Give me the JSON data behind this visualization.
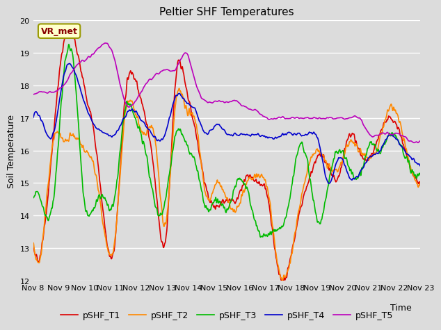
{
  "title": "Peltier SHF Temperatures",
  "xlabel": "Time",
  "ylabel": "Soil Temperature",
  "ylim": [
    12.0,
    20.0
  ],
  "yticks": [
    12.0,
    13.0,
    14.0,
    15.0,
    16.0,
    17.0,
    18.0,
    19.0,
    20.0
  ],
  "x_tick_labels": [
    "Nov 8",
    "Nov 9",
    "Nov 10",
    "Nov 11",
    "Nov 12",
    "Nov 13",
    "Nov 14",
    "Nov 15",
    "Nov 16",
    "Nov 17",
    "Nov 18",
    "Nov 19",
    "Nov 20",
    "Nov 21",
    "Nov 22",
    "Nov 23"
  ],
  "annotation_text": "VR_met",
  "series_colors": {
    "pSHF_T1": "#dd0000",
    "pSHF_T2": "#ff8800",
    "pSHF_T3": "#00bb00",
    "pSHF_T4": "#0000cc",
    "pSHF_T5": "#bb00bb"
  },
  "background_color": "#dcdcdc",
  "plot_bg_color": "#dcdcdc",
  "grid_color": "#ffffff",
  "title_fontsize": 11,
  "axis_fontsize": 9,
  "tick_fontsize": 8,
  "legend_fontsize": 9,
  "line_width": 1.2
}
